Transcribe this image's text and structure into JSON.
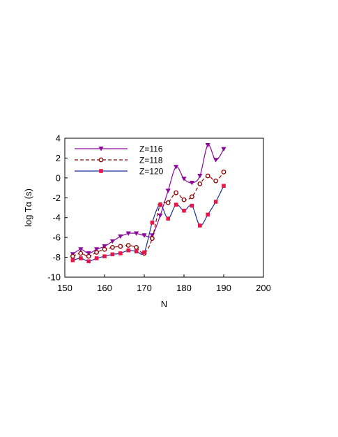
{
  "chart_data": {
    "type": "line",
    "xlabel": "N",
    "ylabel": "log Tα (s)",
    "xlim": [
      150,
      200
    ],
    "ylim": [
      -10,
      4
    ],
    "xticks": [
      "150",
      "160",
      "170",
      "180",
      "190",
      "200"
    ],
    "yticks": [
      "-10",
      "-8",
      "-6",
      "-4",
      "-2",
      "0",
      "2",
      "4"
    ],
    "grid": false,
    "legend_position": "top-left",
    "series": [
      {
        "name": "Z=116",
        "color": "#8B0A9C",
        "marker": "triangle-down",
        "line": "solid",
        "x": [
          152,
          154,
          156,
          158,
          160,
          162,
          164,
          166,
          168,
          170,
          172,
          174,
          176,
          178,
          180,
          182,
          184,
          186,
          188,
          190
        ],
        "y": [
          -7.7,
          -7.2,
          -7.6,
          -7.2,
          -6.9,
          -6.4,
          -5.9,
          -5.6,
          -5.6,
          -5.8,
          -5.8,
          -3.8,
          -1.3,
          1.1,
          -0.1,
          -0.5,
          0.2,
          3.3,
          1.8,
          2.9
        ]
      },
      {
        "name": "Z=118",
        "color": "#8B0000",
        "marker": "circle-open",
        "line": "dashed",
        "x": [
          152,
          154,
          156,
          158,
          160,
          162,
          164,
          166,
          168,
          170,
          172,
          174,
          176,
          178,
          180,
          182,
          184,
          186,
          188,
          190
        ],
        "y": [
          -7.9,
          -7.6,
          -7.9,
          -7.5,
          -7.2,
          -7.0,
          -6.9,
          -6.8,
          -7.0,
          -7.6,
          -6.1,
          -2.7,
          -2.5,
          -1.5,
          -2.2,
          -1.9,
          -0.6,
          0.2,
          -0.3,
          0.6
        ]
      },
      {
        "name": "Z=120",
        "color": "#1A2C9E",
        "marker_color": "#E8174A",
        "marker": "square",
        "line": "solid",
        "x": [
          152,
          154,
          156,
          158,
          160,
          162,
          164,
          166,
          168,
          170,
          172,
          174,
          176,
          178,
          180,
          182,
          184,
          186,
          188,
          190
        ],
        "y": [
          -8.3,
          -8.1,
          -8.4,
          -8.1,
          -7.9,
          -7.7,
          -7.6,
          -7.3,
          -7.4,
          -7.5,
          -4.5,
          -2.7,
          -4.1,
          -2.7,
          -3.3,
          -2.8,
          -4.8,
          -3.7,
          -2.4,
          -0.8
        ]
      }
    ]
  }
}
